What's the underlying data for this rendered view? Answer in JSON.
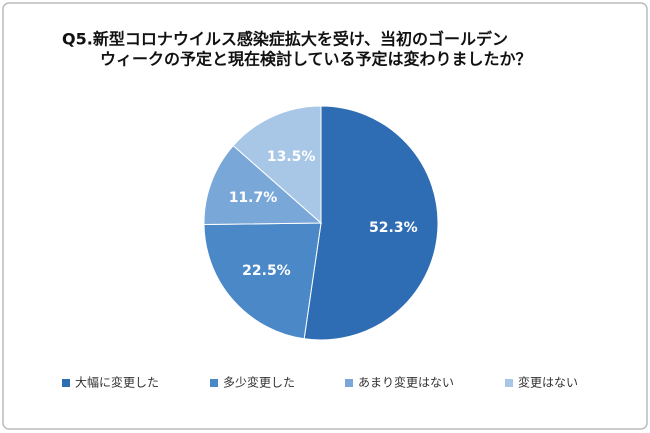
{
  "chart_data": {
    "type": "pie",
    "title": [
      "Q5.新型コロナウイルス感染症拡大を受け、当初のゴールデン",
      "ウィークの予定と現在検討している予定は変わりましたか？"
    ],
    "categories": [
      "大幅に変更した",
      "多少変更した",
      "あまり変更はない",
      "変更はない"
    ],
    "values": [
      52.3,
      22.5,
      11.7,
      13.5
    ],
    "value_labels": [
      "52.3%",
      "22.5%",
      "11.7%",
      "13.5%"
    ],
    "colors": [
      "#2e6db4",
      "#4a88c8",
      "#79a7d8",
      "#a8c6e6"
    ],
    "legend": "bottom"
  }
}
